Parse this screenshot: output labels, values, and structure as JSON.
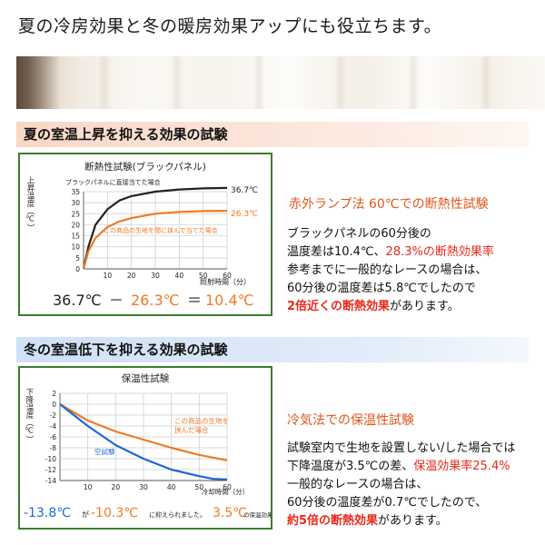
{
  "page": {
    "title": "夏の冷房効果と冬の暖房効果アップにも役立ちます。"
  },
  "colors": {
    "accent_orange": "#e0561c",
    "highlight_red": "#e8281a",
    "frame_green": "#3a7d2e",
    "series_black": "#222222",
    "series_orange": "#ee7a26",
    "series_blue": "#1f66d8"
  },
  "summer": {
    "header": "夏の室温上昇を抑える効果の試験",
    "chart_title": "断熱性試験(ブラックパネル)",
    "ylabel": "上昇温度（℃）",
    "xlabel": "照射時間（分）",
    "label_black": "ブラックパネルに直接当てた場合",
    "label_orange": "この商品の生地を間に挟んで当てた場合",
    "end_black": "36.7℃",
    "end_orange": "26.3℃",
    "calc_a": "36.7℃",
    "calc_op": "－",
    "calc_b": "26.3℃",
    "calc_eq": "＝",
    "calc_result": "10.4℃",
    "panel_label": "赤外ランプ法 60℃での断熱性試験",
    "text_l1": "ブラックパネルの60分後の",
    "text_l2a": "温度差は10.4℃、",
    "text_l2b": "28.3%の断熱効果率",
    "text_l3": "参考までに一般的なレースの場合は、",
    "text_l4": "60分後の温度差は5.8℃でしたので",
    "text_l5a": "2倍近くの断熱効果",
    "text_l5b": "があります。"
  },
  "winter": {
    "header": "冬の室温低下を抑える効果の試験",
    "chart_title": "保温性試験",
    "ylabel": "下降温度（℃）",
    "xlabel": "冷却時間（分）",
    "label_orange_1": "この商品の生地を",
    "label_orange_2": "挟んだ場合",
    "label_blue": "空試験",
    "result_blue": "-13.8℃",
    "result_blue_suffix": "が",
    "result_orange": "-10.3℃",
    "result_mid": "に抑えられました。",
    "result_diff": "3.5℃",
    "result_suffix": "の保温効果",
    "panel_label": "冷気法での保温性試験",
    "text_l1": "試験室内で生地を設置しない/した場合では",
    "text_l2a": "下降温度が3.5℃の差、",
    "text_l2b": "保温効果率25.4%",
    "text_l3": "一般的なレースの場合は、",
    "text_l4": "60分後の温度差が0.7℃でしたので、",
    "text_l5a": "約5倍の断熱効果",
    "text_l5b": "があります。"
  },
  "chart_data": [
    {
      "type": "line",
      "title": "断熱性試験(ブラックパネル)",
      "xlabel": "照射時間（分）",
      "ylabel": "上昇温度（℃）",
      "xlim": [
        0,
        60
      ],
      "ylim": [
        0,
        35
      ],
      "xticks": [
        10,
        20,
        30,
        40,
        50,
        60
      ],
      "yticks": [
        0,
        5,
        10,
        15,
        20,
        25,
        30,
        35
      ],
      "grid": true,
      "series": [
        {
          "name": "ブラックパネルに直接当てた場合",
          "color": "#222222",
          "x": [
            0,
            2,
            5,
            10,
            15,
            20,
            30,
            40,
            50,
            60
          ],
          "y": [
            0,
            10,
            20,
            27,
            31,
            33,
            35,
            36,
            36.5,
            36.7
          ]
        },
        {
          "name": "この商品の生地を間に挟んで当てた場合",
          "color": "#ee7a26",
          "x": [
            0,
            2,
            5,
            10,
            15,
            20,
            30,
            40,
            50,
            60
          ],
          "y": [
            0,
            8,
            14,
            19,
            21.5,
            23,
            25,
            25.8,
            26.2,
            26.3
          ]
        }
      ]
    },
    {
      "type": "line",
      "title": "保温性試験",
      "xlabel": "冷却時間（分）",
      "ylabel": "下降温度（℃）",
      "xlim": [
        0,
        60
      ],
      "ylim": [
        -14,
        2
      ],
      "xticks": [
        10,
        20,
        30,
        40,
        50,
        60
      ],
      "yticks": [
        2,
        0,
        -2,
        -4,
        -6,
        -8,
        -10,
        -12,
        -14
      ],
      "grid": true,
      "series": [
        {
          "name": "この商品の生地を挟んだ場合",
          "color": "#ee7a26",
          "x": [
            0,
            5,
            10,
            20,
            30,
            40,
            50,
            60
          ],
          "y": [
            0,
            -1.5,
            -3,
            -5,
            -6.5,
            -8,
            -9.3,
            -10.3
          ]
        },
        {
          "name": "空試験",
          "color": "#1f66d8",
          "x": [
            0,
            5,
            10,
            20,
            30,
            40,
            50,
            55,
            60
          ],
          "y": [
            0,
            -2,
            -4,
            -7.5,
            -10,
            -12,
            -13.2,
            -13.7,
            -13.8
          ]
        }
      ]
    }
  ]
}
